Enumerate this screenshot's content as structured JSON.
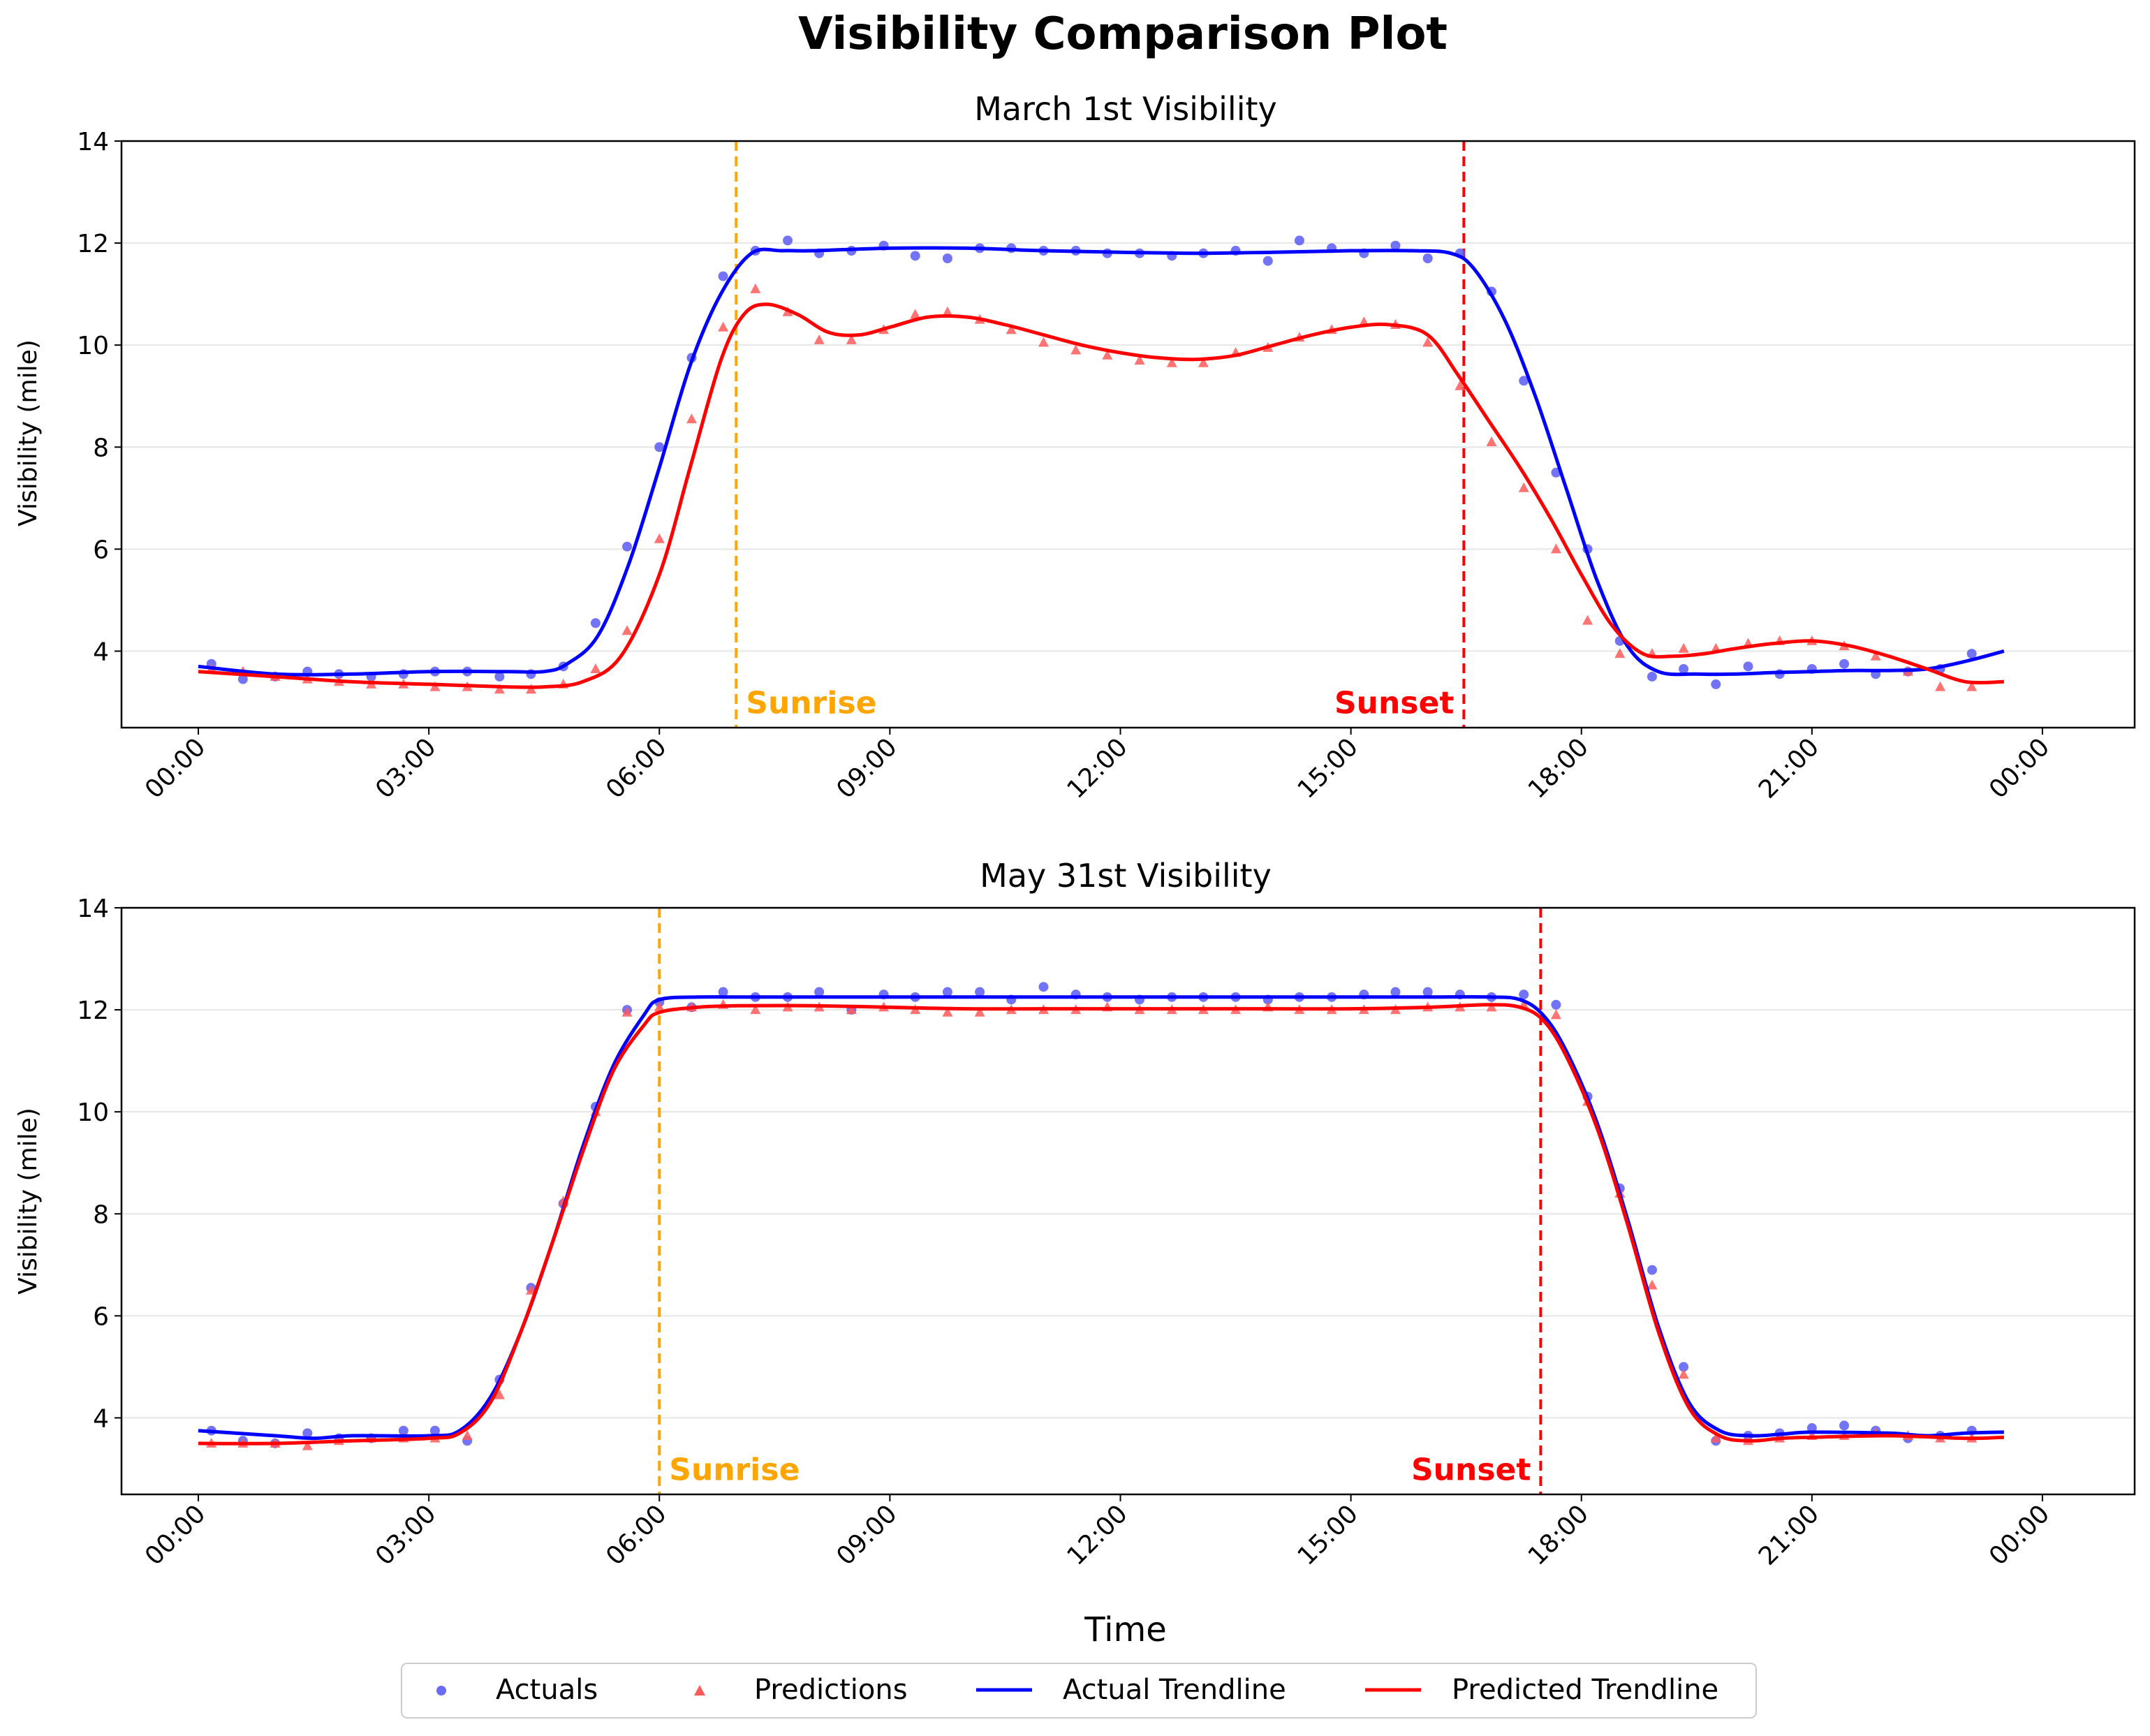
{
  "figure_title": "Visibility Comparison Plot",
  "xlabel": "Time",
  "legend": {
    "placement": "bottom-center",
    "items": [
      {
        "label": "Actuals",
        "marker": "circle",
        "color": "#5b5bf5"
      },
      {
        "label": "Predictions",
        "marker": "triangle",
        "color": "#ff5a5a"
      },
      {
        "label": "Actual Trendline",
        "marker": "line",
        "color": "#0000ff"
      },
      {
        "label": "Predicted Trendline",
        "marker": "line",
        "color": "#ff0000"
      }
    ]
  },
  "colors": {
    "actual_line": "#0000ff",
    "predicted_line": "#ff0000",
    "actual_points": "#5b5bf5",
    "predicted_points": "#ff5a5a",
    "sunrise": "#ffa500",
    "sunset": "#ff0000",
    "grid": "#e6e6e6"
  },
  "chart_data": [
    {
      "type": "line",
      "title": "March 1st Visibility",
      "xlabel": "",
      "ylabel": "Visibility (mile)",
      "x_unit": "hours",
      "xlim": [
        -1.0,
        25.2
      ],
      "ylim": [
        2.5,
        14
      ],
      "yticks": [
        4,
        6,
        8,
        10,
        12,
        14
      ],
      "xticks": [
        0,
        3,
        6,
        9,
        12,
        15,
        18,
        21,
        24
      ],
      "xtick_labels": [
        "00:00",
        "03:00",
        "06:00",
        "09:00",
        "12:00",
        "15:00",
        "18:00",
        "21:00",
        "00:00"
      ],
      "grid": "horizontal",
      "sunrise": {
        "x": 7.0,
        "label": "Sunrise"
      },
      "sunset": {
        "x": 16.47,
        "label": "Sunset"
      },
      "series": [
        {
          "name": "Actuals",
          "kind": "scatter",
          "x": [
            0.17,
            0.58,
            1.0,
            1.42,
            1.83,
            2.25,
            2.67,
            3.08,
            3.5,
            3.92,
            4.33,
            4.75,
            5.17,
            5.58,
            6.0,
            6.42,
            6.83,
            7.25,
            7.67,
            8.08,
            8.5,
            8.92,
            9.33,
            9.75,
            10.17,
            10.58,
            11.0,
            11.42,
            11.83,
            12.25,
            12.67,
            13.08,
            13.5,
            13.92,
            14.33,
            14.75,
            15.17,
            15.58,
            16.0,
            16.42,
            16.83,
            17.25,
            17.67,
            18.08,
            18.5,
            18.92,
            19.33,
            19.75,
            20.17,
            20.58,
            21.0,
            21.42,
            21.83,
            22.25,
            22.67,
            23.08
          ],
          "y": [
            3.75,
            3.45,
            3.5,
            3.6,
            3.55,
            3.5,
            3.55,
            3.6,
            3.6,
            3.5,
            3.55,
            3.7,
            4.55,
            6.05,
            8.0,
            9.75,
            11.35,
            11.85,
            12.05,
            11.8,
            11.85,
            11.95,
            11.75,
            11.7,
            11.9,
            11.9,
            11.85,
            11.85,
            11.8,
            11.8,
            11.75,
            11.8,
            11.85,
            11.65,
            12.05,
            11.9,
            11.8,
            11.95,
            11.7,
            11.8,
            11.05,
            9.3,
            7.5,
            6.0,
            4.2,
            3.5,
            3.65,
            3.35,
            3.7,
            3.55,
            3.65,
            3.75,
            3.55,
            3.6,
            3.65,
            3.95
          ]
        },
        {
          "name": "Predictions",
          "kind": "scatter",
          "x": [
            0.17,
            0.58,
            1.0,
            1.42,
            1.83,
            2.25,
            2.67,
            3.08,
            3.5,
            3.92,
            4.33,
            4.75,
            5.17,
            5.58,
            6.0,
            6.42,
            6.83,
            7.25,
            7.67,
            8.08,
            8.5,
            8.92,
            9.33,
            9.75,
            10.17,
            10.58,
            11.0,
            11.42,
            11.83,
            12.25,
            12.67,
            13.08,
            13.5,
            13.92,
            14.33,
            14.75,
            15.17,
            15.58,
            16.0,
            16.42,
            16.83,
            17.25,
            17.67,
            18.08,
            18.5,
            18.92,
            19.33,
            19.75,
            20.17,
            20.58,
            21.0,
            21.42,
            21.83,
            22.25,
            22.67,
            23.08
          ],
          "y": [
            3.65,
            3.6,
            3.5,
            3.45,
            3.4,
            3.35,
            3.35,
            3.3,
            3.3,
            3.25,
            3.25,
            3.35,
            3.65,
            4.4,
            6.2,
            8.55,
            10.35,
            11.1,
            10.65,
            10.1,
            10.1,
            10.3,
            10.6,
            10.65,
            10.5,
            10.3,
            10.05,
            9.9,
            9.8,
            9.7,
            9.65,
            9.65,
            9.85,
            9.95,
            10.15,
            10.3,
            10.45,
            10.4,
            10.05,
            9.2,
            8.1,
            7.2,
            6.0,
            4.6,
            3.95,
            3.95,
            4.05,
            4.05,
            4.15,
            4.2,
            4.2,
            4.1,
            3.9,
            3.6,
            3.3,
            3.3
          ]
        },
        {
          "name": "Actual Trendline",
          "kind": "line",
          "x": [
            0.0,
            1.0,
            2.0,
            3.0,
            4.0,
            4.5,
            4.8,
            5.2,
            5.6,
            6.0,
            6.4,
            6.8,
            7.2,
            7.6,
            8.0,
            9.0,
            10.0,
            11.0,
            12.0,
            13.0,
            14.0,
            15.0,
            15.8,
            16.3,
            16.6,
            17.0,
            17.4,
            17.8,
            18.2,
            18.6,
            19.0,
            19.5,
            20.0,
            20.5,
            21.0,
            21.5,
            22.0,
            22.5,
            23.0,
            23.5
          ],
          "y": [
            3.7,
            3.55,
            3.55,
            3.6,
            3.6,
            3.6,
            3.75,
            4.3,
            5.7,
            7.6,
            9.6,
            11.0,
            11.8,
            11.85,
            11.85,
            11.9,
            11.9,
            11.85,
            11.82,
            11.8,
            11.82,
            11.85,
            11.85,
            11.8,
            11.5,
            10.5,
            9.0,
            7.2,
            5.4,
            4.1,
            3.6,
            3.55,
            3.55,
            3.58,
            3.6,
            3.62,
            3.62,
            3.65,
            3.8,
            4.0
          ]
        },
        {
          "name": "Predicted Trendline",
          "kind": "line",
          "x": [
            0.0,
            1.0,
            2.0,
            3.0,
            4.0,
            4.5,
            5.0,
            5.5,
            6.0,
            6.4,
            6.8,
            7.1,
            7.4,
            7.8,
            8.2,
            8.6,
            9.0,
            9.5,
            10.0,
            10.5,
            11.0,
            11.5,
            12.0,
            12.5,
            13.0,
            13.5,
            14.0,
            14.5,
            15.0,
            15.5,
            16.0,
            16.4,
            16.8,
            17.2,
            17.6,
            18.0,
            18.4,
            18.8,
            19.2,
            19.6,
            20.0,
            20.5,
            21.0,
            21.5,
            22.0,
            22.5,
            23.0,
            23.5
          ],
          "y": [
            3.6,
            3.5,
            3.4,
            3.35,
            3.3,
            3.3,
            3.4,
            3.9,
            5.5,
            7.6,
            9.7,
            10.6,
            10.8,
            10.6,
            10.25,
            10.2,
            10.35,
            10.55,
            10.55,
            10.4,
            10.2,
            10.0,
            9.85,
            9.75,
            9.72,
            9.8,
            10.0,
            10.2,
            10.35,
            10.4,
            10.2,
            9.4,
            8.5,
            7.6,
            6.6,
            5.5,
            4.5,
            3.95,
            3.9,
            3.95,
            4.05,
            4.15,
            4.2,
            4.1,
            3.9,
            3.65,
            3.4,
            3.4
          ]
        }
      ]
    },
    {
      "type": "line",
      "title": "May 31st Visibility",
      "xlabel": "Time",
      "ylabel": "Visibility (mile)",
      "x_unit": "hours",
      "xlim": [
        -1.0,
        25.2
      ],
      "ylim": [
        2.5,
        14
      ],
      "yticks": [
        4,
        6,
        8,
        10,
        12,
        14
      ],
      "xticks": [
        0,
        3,
        6,
        9,
        12,
        15,
        18,
        21,
        24
      ],
      "xtick_labels": [
        "00:00",
        "03:00",
        "06:00",
        "09:00",
        "12:00",
        "15:00",
        "18:00",
        "21:00",
        "00:00"
      ],
      "grid": "horizontal",
      "sunrise": {
        "x": 6.0,
        "label": "Sunrise"
      },
      "sunset": {
        "x": 17.47,
        "label": "Sunset"
      },
      "series": [
        {
          "name": "Actuals",
          "kind": "scatter",
          "x": [
            0.17,
            0.58,
            1.0,
            1.42,
            1.83,
            2.25,
            2.67,
            3.08,
            3.5,
            3.92,
            4.33,
            4.75,
            5.17,
            5.58,
            6.0,
            6.42,
            6.83,
            7.25,
            7.67,
            8.08,
            8.5,
            8.92,
            9.33,
            9.75,
            10.17,
            10.58,
            11.0,
            11.42,
            11.83,
            12.25,
            12.67,
            13.08,
            13.5,
            13.92,
            14.33,
            14.75,
            15.17,
            15.58,
            16.0,
            16.42,
            16.83,
            17.25,
            17.67,
            18.08,
            18.5,
            18.92,
            19.33,
            19.75,
            20.17,
            20.58,
            21.0,
            21.42,
            21.83,
            22.25,
            22.67,
            23.08
          ],
          "y": [
            3.75,
            3.55,
            3.5,
            3.7,
            3.6,
            3.6,
            3.75,
            3.75,
            3.55,
            4.75,
            6.55,
            8.2,
            10.1,
            12.0,
            12.15,
            12.05,
            12.35,
            12.25,
            12.25,
            12.35,
            12.0,
            12.3,
            12.25,
            12.35,
            12.35,
            12.2,
            12.45,
            12.3,
            12.25,
            12.2,
            12.25,
            12.25,
            12.25,
            12.2,
            12.25,
            12.25,
            12.3,
            12.35,
            12.35,
            12.3,
            12.25,
            12.3,
            12.1,
            10.3,
            8.5,
            6.9,
            5.0,
            3.55,
            3.65,
            3.7,
            3.8,
            3.85,
            3.75,
            3.6,
            3.65,
            3.75
          ]
        },
        {
          "name": "Predictions",
          "kind": "scatter",
          "x": [
            0.17,
            0.58,
            1.0,
            1.42,
            1.83,
            2.25,
            2.67,
            3.08,
            3.5,
            3.92,
            4.33,
            4.75,
            5.17,
            5.58,
            6.0,
            6.42,
            6.83,
            7.25,
            7.67,
            8.08,
            8.5,
            8.92,
            9.33,
            9.75,
            10.17,
            10.58,
            11.0,
            11.42,
            11.83,
            12.25,
            12.67,
            13.08,
            13.5,
            13.92,
            14.33,
            14.75,
            15.17,
            15.58,
            16.0,
            16.42,
            16.83,
            17.25,
            17.67,
            18.08,
            18.5,
            18.92,
            19.33,
            19.75,
            20.17,
            20.58,
            21.0,
            21.42,
            21.83,
            22.25,
            22.67,
            23.08
          ],
          "y": [
            3.5,
            3.5,
            3.5,
            3.45,
            3.55,
            3.6,
            3.6,
            3.6,
            3.65,
            4.45,
            6.5,
            8.25,
            10.0,
            11.95,
            12.05,
            12.05,
            12.1,
            12.0,
            12.05,
            12.05,
            12.0,
            12.05,
            12.0,
            11.95,
            11.95,
            12.0,
            12.0,
            12.0,
            12.05,
            12.0,
            12.0,
            12.0,
            12.0,
            12.05,
            12.0,
            12.0,
            12.0,
            12.0,
            12.05,
            12.05,
            12.05,
            12.1,
            11.9,
            10.2,
            8.4,
            6.6,
            4.85,
            3.6,
            3.55,
            3.6,
            3.65,
            3.65,
            3.7,
            3.65,
            3.6,
            3.6
          ]
        },
        {
          "name": "Actual Trendline",
          "kind": "line",
          "x": [
            0.0,
            1.0,
            1.5,
            2.0,
            3.0,
            3.4,
            3.8,
            4.2,
            4.6,
            5.0,
            5.4,
            5.8,
            6.0,
            6.5,
            7.0,
            8.0,
            9.0,
            10.0,
            11.0,
            12.0,
            13.0,
            14.0,
            15.0,
            16.0,
            16.8,
            17.2,
            17.5,
            17.8,
            18.2,
            18.6,
            19.0,
            19.4,
            19.8,
            20.2,
            20.6,
            21.0,
            22.0,
            22.5,
            23.0,
            23.5
          ],
          "y": [
            3.75,
            3.65,
            3.6,
            3.65,
            3.65,
            3.75,
            4.4,
            5.7,
            7.4,
            9.3,
            10.9,
            11.9,
            12.2,
            12.25,
            12.25,
            12.25,
            12.25,
            12.25,
            12.25,
            12.25,
            12.25,
            12.25,
            12.25,
            12.25,
            12.25,
            12.2,
            11.9,
            11.2,
            9.8,
            7.9,
            5.8,
            4.3,
            3.75,
            3.65,
            3.68,
            3.72,
            3.7,
            3.65,
            3.7,
            3.72
          ]
        },
        {
          "name": "Predicted Trendline",
          "kind": "line",
          "x": [
            0.0,
            1.0,
            2.0,
            3.0,
            3.4,
            3.8,
            4.2,
            4.6,
            5.0,
            5.4,
            5.8,
            6.0,
            6.5,
            7.0,
            8.0,
            9.0,
            10.0,
            11.0,
            12.0,
            13.0,
            14.0,
            15.0,
            16.0,
            16.8,
            17.2,
            17.5,
            17.8,
            18.2,
            18.6,
            19.0,
            19.4,
            19.8,
            20.2,
            20.6,
            21.0,
            22.0,
            23.0,
            23.5
          ],
          "y": [
            3.5,
            3.5,
            3.55,
            3.6,
            3.7,
            4.3,
            5.7,
            7.4,
            9.2,
            10.8,
            11.7,
            11.95,
            12.05,
            12.08,
            12.08,
            12.05,
            12.02,
            12.02,
            12.02,
            12.02,
            12.02,
            12.02,
            12.05,
            12.1,
            12.05,
            11.8,
            11.1,
            9.7,
            7.8,
            5.7,
            4.2,
            3.65,
            3.55,
            3.6,
            3.62,
            3.65,
            3.6,
            3.62
          ]
        }
      ]
    }
  ]
}
